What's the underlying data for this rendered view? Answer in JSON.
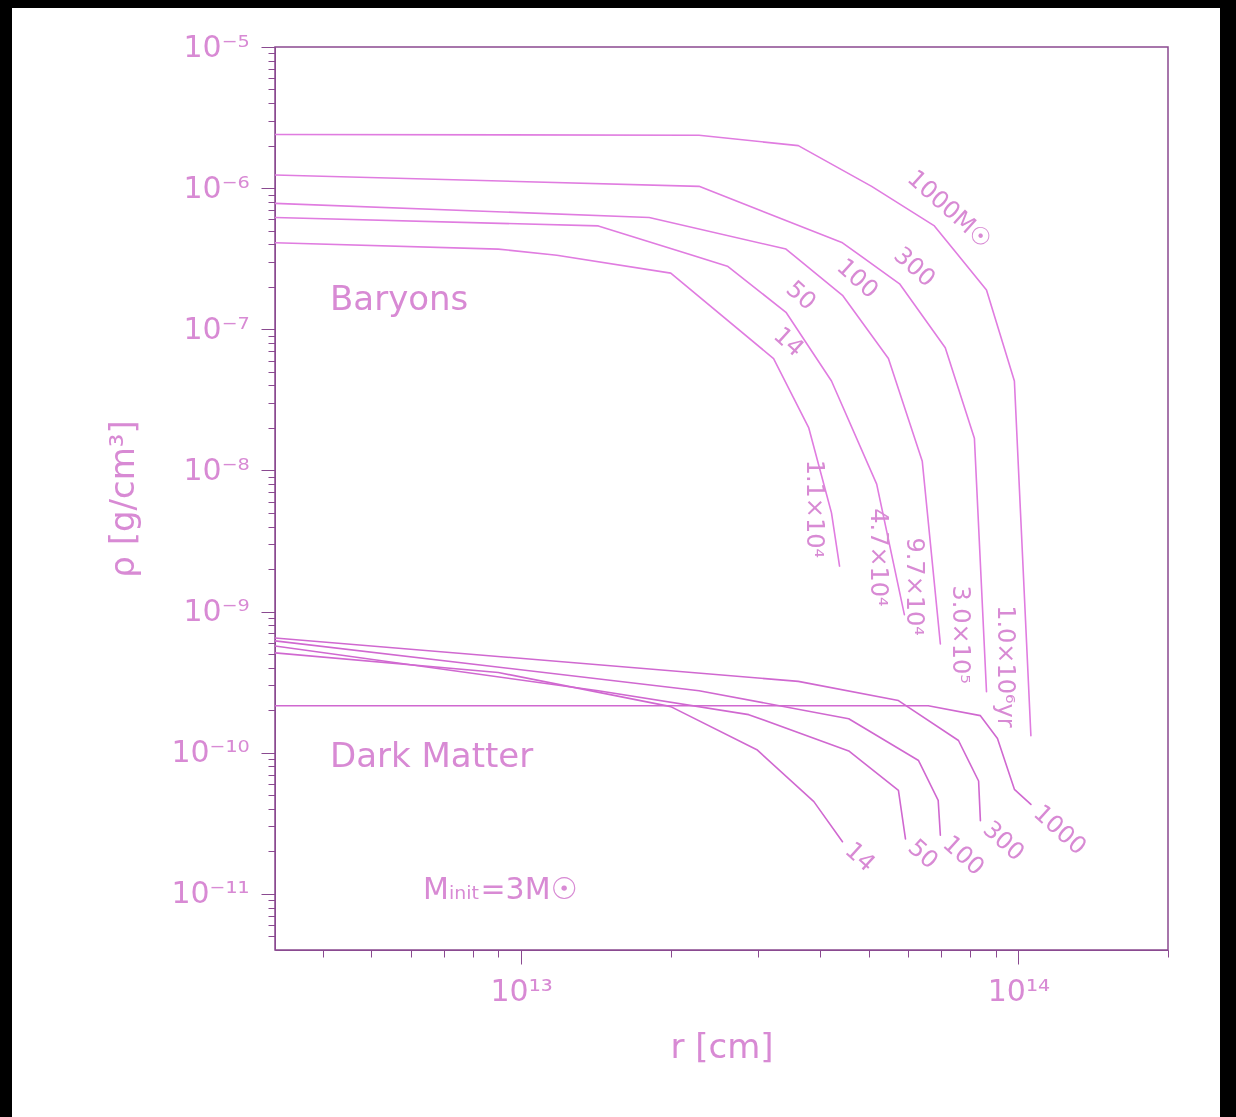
{
  "chart_data": {
    "type": "line",
    "xlabel": "r [cm]",
    "ylabel": "ρ [g/cm³]",
    "log": "xy",
    "xlim": [
      3200000000000.0,
      200000000000000.0
    ],
    "ylim": [
      4e-12,
      1e-05
    ],
    "xticks": [
      {
        "value": 4000000000000.0,
        "label": null
      },
      {
        "value": 5000000000000.0,
        "label": null
      },
      {
        "value": 6000000000000.0,
        "label": null
      },
      {
        "value": 7000000000000.0,
        "label": null
      },
      {
        "value": 8000000000000.0,
        "label": null
      },
      {
        "value": 9000000000000.0,
        "label": null
      },
      {
        "value": 10000000000000.0,
        "label": "10¹³"
      },
      {
        "value": 20000000000000.0,
        "label": null
      },
      {
        "value": 30000000000000.0,
        "label": null
      },
      {
        "value": 40000000000000.0,
        "label": null
      },
      {
        "value": 50000000000000.0,
        "label": null
      },
      {
        "value": 60000000000000.0,
        "label": null
      },
      {
        "value": 70000000000000.0,
        "label": null
      },
      {
        "value": 80000000000000.0,
        "label": null
      },
      {
        "value": 90000000000000.0,
        "label": null
      },
      {
        "value": 100000000000000.0,
        "label": "10¹⁴"
      },
      {
        "value": 200000000000000.0,
        "label": null
      }
    ],
    "yticks": [
      {
        "value": 5e-12,
        "label": null
      },
      {
        "value": 6e-12,
        "label": null
      },
      {
        "value": 7e-12,
        "label": null
      },
      {
        "value": 8e-12,
        "label": null
      },
      {
        "value": 9e-12,
        "label": null
      },
      {
        "value": 1e-11,
        "label": "10⁻¹¹"
      },
      {
        "value": 2e-11,
        "label": null
      },
      {
        "value": 3e-11,
        "label": null
      },
      {
        "value": 4e-11,
        "label": null
      },
      {
        "value": 5e-11,
        "label": null
      },
      {
        "value": 6e-11,
        "label": null
      },
      {
        "value": 7e-11,
        "label": null
      },
      {
        "value": 8e-11,
        "label": null
      },
      {
        "value": 9e-11,
        "label": null
      },
      {
        "value": 1e-10,
        "label": "10⁻¹⁰"
      },
      {
        "value": 2e-10,
        "label": null
      },
      {
        "value": 3e-10,
        "label": null
      },
      {
        "value": 4e-10,
        "label": null
      },
      {
        "value": 5e-10,
        "label": null
      },
      {
        "value": 6e-10,
        "label": null
      },
      {
        "value": 7e-10,
        "label": null
      },
      {
        "value": 8e-10,
        "label": null
      },
      {
        "value": 9e-10,
        "label": null
      },
      {
        "value": 1e-09,
        "label": "10⁻⁹"
      },
      {
        "value": 2e-09,
        "label": null
      },
      {
        "value": 3e-09,
        "label": null
      },
      {
        "value": 4e-09,
        "label": null
      },
      {
        "value": 5e-09,
        "label": null
      },
      {
        "value": 6e-09,
        "label": null
      },
      {
        "value": 7e-09,
        "label": null
      },
      {
        "value": 8e-09,
        "label": null
      },
      {
        "value": 9e-09,
        "label": null
      },
      {
        "value": 1e-08,
        "label": "10⁻⁸"
      },
      {
        "value": 2e-08,
        "label": null
      },
      {
        "value": 3e-08,
        "label": null
      },
      {
        "value": 4e-08,
        "label": null
      },
      {
        "value": 5e-08,
        "label": null
      },
      {
        "value": 6e-08,
        "label": null
      },
      {
        "value": 7e-08,
        "label": null
      },
      {
        "value": 8e-08,
        "label": null
      },
      {
        "value": 9e-08,
        "label": null
      },
      {
        "value": 1e-07,
        "label": "10⁻⁷"
      },
      {
        "value": 2e-07,
        "label": null
      },
      {
        "value": 3e-07,
        "label": null
      },
      {
        "value": 4e-07,
        "label": null
      },
      {
        "value": 5e-07,
        "label": null
      },
      {
        "value": 6e-07,
        "label": null
      },
      {
        "value": 7e-07,
        "label": null
      },
      {
        "value": 8e-07,
        "label": null
      },
      {
        "value": 9e-07,
        "label": null
      },
      {
        "value": 1e-06,
        "label": "10⁻⁶"
      },
      {
        "value": 2e-06,
        "label": null
      },
      {
        "value": 3e-06,
        "label": null
      },
      {
        "value": 4e-06,
        "label": null
      },
      {
        "value": 5e-06,
        "label": null
      },
      {
        "value": 6e-06,
        "label": null
      },
      {
        "value": 7e-06,
        "label": null
      },
      {
        "value": 8e-06,
        "label": null
      },
      {
        "value": 9e-06,
        "label": null
      },
      {
        "value": 1e-05,
        "label": "10⁻⁵"
      }
    ],
    "series": [
      {
        "name": "1000M☉",
        "color": "#e07ce0",
        "x": [
          3200000000000.0,
          22800000000000.0,
          36100000000000.0,
          50700000000000.0,
          67800000000000.0,
          86300000000000.0,
          98200000000000.0,
          106000000000000.0
        ],
        "values": [
          2.4e-06,
          2.37e-06,
          2e-06,
          1.03e-06,
          5.4e-07,
          1.9e-07,
          4.3e-08,
          1.32e-10
        ]
      },
      {
        "name": "300",
        "color": "#e07ce0",
        "x": [
          3200000000000.0,
          22800000000000.0,
          44300000000000.0,
          57700000000000.0,
          71300000000000.0,
          81600000000000.0,
          86300000000000.0
        ],
        "values": [
          1.24e-06,
          1.03e-06,
          4.1e-07,
          2.1e-07,
          7.4e-08,
          1.69e-08,
          2.7e-10
        ]
      },
      {
        "name": "100",
        "color": "#e07ce0",
        "x": [
          3200000000000.0,
          18100000000000.0,
          34100000000000.0,
          44300000000000.0,
          54800000000000.0,
          64100000000000.0,
          69700000000000.0
        ],
        "values": [
          7.8e-07,
          6.2e-07,
          3.7e-07,
          1.74e-07,
          6.2e-08,
          1.16e-08,
          5.9e-10
        ]
      },
      {
        "name": "50",
        "color": "#e07ce0",
        "x": [
          3200000000000.0,
          14300000000000.0,
          26000000000000.0,
          34100000000000.0,
          42100000000000.0,
          51900000000000.0,
          59000000000000.0
        ],
        "values": [
          6.2e-07,
          5.4e-07,
          2.8e-07,
          1.32e-07,
          4.3e-08,
          8e-09,
          9.5e-10
        ]
      },
      {
        "name": "14",
        "color": "#e07ce0",
        "x": [
          3200000000000.0,
          9000000000000.0,
          11800000000000.0,
          20000000000000.0,
          32200000000000.0,
          37900000000000.0,
          42100000000000.0,
          43700000000000.0
        ],
        "values": [
          4.1e-07,
          3.7e-07,
          3.35e-07,
          2.5e-07,
          6.2e-08,
          2e-08,
          5e-09,
          2.1e-09
        ]
      },
      {
        "name": "1000",
        "color": "#d068d0",
        "x": [
          3200000000000.0,
          65900000000000.0,
          83900000000000.0,
          90800000000000.0,
          98200000000000.0,
          106000000000000.0
        ],
        "values": [
          2.15e-10,
          2.15e-10,
          1.83e-10,
          1.26e-10,
          5.5e-11,
          4.3e-11
        ]
      },
      {
        "name": "300",
        "color": "#d068d0",
        "x": [
          3200000000000.0,
          36100000000000.0,
          57400000000000.0,
          75800000000000.0,
          83200000000000.0,
          83900000000000.0
        ],
        "values": [
          6.5e-10,
          3.2e-10,
          2.34e-10,
          1.22e-10,
          6.3e-11,
          3.3e-11
        ]
      },
      {
        "name": "100",
        "color": "#d068d0",
        "x": [
          3200000000000.0,
          22800000000000.0,
          45600000000000.0,
          63000000000000.0,
          69000000000000.0,
          69700000000000.0
        ],
        "values": [
          6.2e-10,
          2.75e-10,
          1.74e-10,
          8.8e-11,
          4.6e-11,
          2.6e-11
        ]
      },
      {
        "name": "50",
        "color": "#d068d0",
        "x": [
          3200000000000.0,
          14300000000000.0,
          28700000000000.0,
          45600000000000.0,
          57400000000000.0,
          59300000000000.0
        ],
        "values": [
          5.7e-10,
          2.75e-10,
          1.86e-10,
          1.03e-10,
          5.4e-11,
          2.45e-11
        ]
      },
      {
        "name": "14",
        "color": "#d068d0",
        "x": [
          3200000000000.0,
          9000000000000.0,
          20000000000000.0,
          29800000000000.0,
          38800000000000.0,
          44300000000000.0
        ],
        "values": [
          5.1e-10,
          3.7e-10,
          2.12e-10,
          1.05e-10,
          4.5e-11,
          2.34e-11
        ]
      }
    ],
    "annotations": [
      "Baryons",
      "Dark Matter",
      "Mᵢₙᵢₜ=3M☉",
      {
        "text": "1.0×10⁶yr",
        "x": 106000000000000.0,
        "y": 1.32e-10
      },
      {
        "text": "3.0×10⁵",
        "x": 86300000000000.0,
        "y": 2.7e-10
      },
      {
        "text": "9.7×10⁴",
        "x": 69700000000000.0,
        "y": 5.9e-10
      },
      {
        "text": "4.7×10⁴",
        "x": 59000000000000.0,
        "y": 9.5e-10
      },
      {
        "text": "1.1×10⁴",
        "x": 43700000000000.0,
        "y": 2.1e-09
      }
    ]
  }
}
